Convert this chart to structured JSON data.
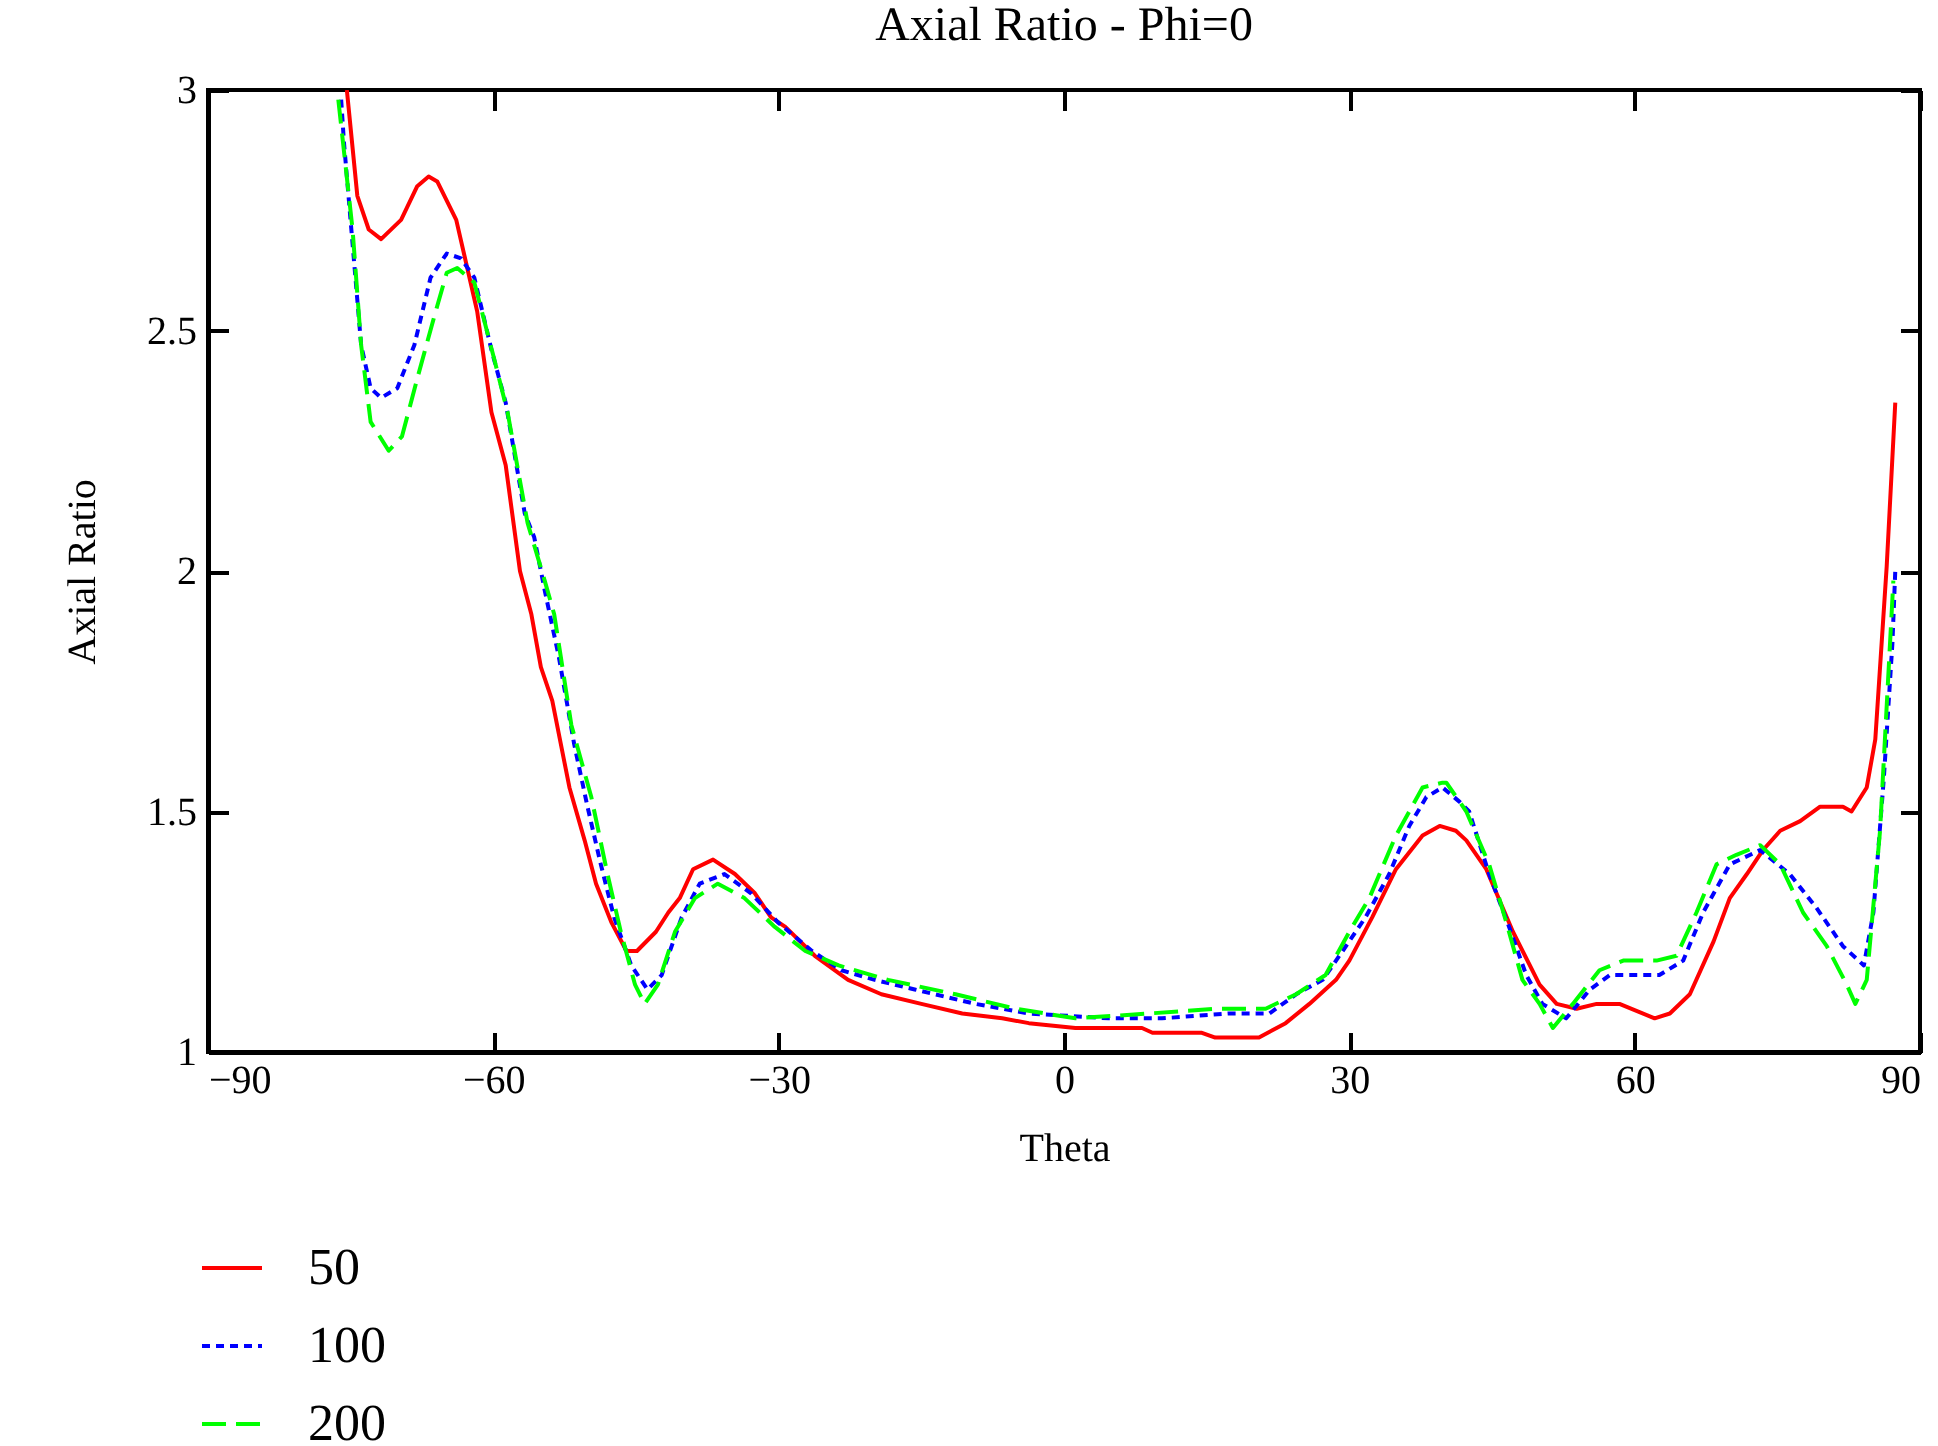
{
  "chart_data": {
    "type": "line",
    "title": "Axial Ratio - Phi=0",
    "xlabel": "Theta",
    "ylabel": "Axial Ratio",
    "xlim": [
      -90,
      90
    ],
    "xticks": [
      -90,
      -60,
      -30,
      0,
      30,
      60,
      90
    ],
    "ylim": [
      1,
      3
    ],
    "yticks": [
      1,
      1.5,
      2,
      2.5,
      3
    ],
    "grid": false,
    "legend": "bottom",
    "marker": "none",
    "series": [
      {
        "name": "50",
        "color": "#ff0000",
        "line_style": "solid",
        "x": [
          -75.4,
          -74.3,
          -73.1,
          -71.8,
          -69.7,
          -68.0,
          -66.8,
          -65.9,
          -63.9,
          -61.7,
          -60.2,
          -58.7,
          -57.2,
          -56.0,
          -55.0,
          -53.8,
          -52.0,
          -50.4,
          -49.2,
          -47.6,
          -46.0,
          -44.9,
          -42.9,
          -41.6,
          -40.4,
          -39.0,
          -36.9,
          -34.6,
          -32.5,
          -30.8,
          -29.3,
          -26.2,
          -22.7,
          -19.2,
          -15.0,
          -10.7,
          -6.5,
          -3.7,
          1.2,
          8.2,
          9.3,
          14.5,
          15.9,
          20.5,
          23.3,
          25.8,
          28.6,
          30.0,
          32.4,
          34.9,
          37.7,
          39.5,
          41.2,
          42.3,
          44.4,
          47.2,
          50.0,
          51.8,
          53.9,
          56.0,
          58.4,
          62.1,
          63.7,
          65.8,
          68.3,
          70.0,
          71.8,
          73.5,
          75.3,
          77.4,
          79.5,
          81.9,
          82.8,
          84.4,
          85.3,
          86.5,
          87.4
        ],
        "values": [
          3.0,
          2.78,
          2.71,
          2.69,
          2.73,
          2.8,
          2.82,
          2.81,
          2.73,
          2.54,
          2.33,
          2.22,
          2.0,
          1.91,
          1.8,
          1.73,
          1.55,
          1.44,
          1.35,
          1.27,
          1.21,
          1.21,
          1.25,
          1.29,
          1.32,
          1.38,
          1.4,
          1.37,
          1.33,
          1.28,
          1.26,
          1.2,
          1.15,
          1.12,
          1.1,
          1.08,
          1.07,
          1.06,
          1.05,
          1.05,
          1.04,
          1.04,
          1.03,
          1.03,
          1.06,
          1.1,
          1.15,
          1.19,
          1.28,
          1.38,
          1.45,
          1.47,
          1.46,
          1.44,
          1.38,
          1.25,
          1.14,
          1.1,
          1.09,
          1.1,
          1.1,
          1.07,
          1.08,
          1.12,
          1.23,
          1.32,
          1.37,
          1.42,
          1.46,
          1.48,
          1.51,
          1.51,
          1.5,
          1.55,
          1.65,
          2.01,
          2.35
        ]
      },
      {
        "name": "100",
        "color": "#0000ff",
        "line_style": "dotted",
        "x": [
          -76.0,
          -75.7,
          -74.8,
          -73.9,
          -72.9,
          -71.8,
          -70.1,
          -68.3,
          -66.6,
          -64.9,
          -63.4,
          -62.0,
          -60.2,
          -58.7,
          -56.7,
          -55.7,
          -54.6,
          -53.1,
          -51.5,
          -50.1,
          -48.7,
          -47.3,
          -45.5,
          -43.8,
          -42.3,
          -40.2,
          -38.3,
          -35.7,
          -32.9,
          -30.1,
          -26.5,
          -23.4,
          -19.9,
          -15.7,
          -9.3,
          -3.7,
          4.7,
          10.3,
          17.3,
          21.6,
          24.4,
          27.2,
          29.3,
          31.7,
          34.2,
          36.3,
          38.1,
          39.8,
          41.6,
          42.6,
          44.7,
          46.8,
          48.6,
          50.3,
          52.8,
          55.3,
          57.4,
          62.6,
          65.1,
          67.2,
          70.0,
          73.2,
          76.3,
          79.1,
          81.9,
          84.1,
          85.1,
          86.2,
          87.1,
          87.4
        ],
        "values": [
          2.98,
          2.89,
          2.68,
          2.47,
          2.38,
          2.36,
          2.38,
          2.47,
          2.61,
          2.66,
          2.65,
          2.61,
          2.46,
          2.35,
          2.12,
          2.07,
          1.96,
          1.82,
          1.64,
          1.51,
          1.39,
          1.28,
          1.18,
          1.13,
          1.16,
          1.28,
          1.35,
          1.37,
          1.33,
          1.27,
          1.21,
          1.17,
          1.15,
          1.13,
          1.1,
          1.08,
          1.07,
          1.07,
          1.08,
          1.08,
          1.12,
          1.15,
          1.21,
          1.28,
          1.37,
          1.47,
          1.53,
          1.55,
          1.52,
          1.5,
          1.37,
          1.26,
          1.16,
          1.1,
          1.07,
          1.13,
          1.16,
          1.16,
          1.19,
          1.29,
          1.39,
          1.42,
          1.37,
          1.3,
          1.22,
          1.18,
          1.29,
          1.57,
          1.85,
          2.0
        ]
      },
      {
        "name": "200",
        "color": "#00ff00",
        "line_style": "dashed",
        "x": [
          -76.3,
          -74.8,
          -73.9,
          -72.9,
          -71.0,
          -69.6,
          -68.0,
          -66.2,
          -64.9,
          -63.8,
          -62.0,
          -59.9,
          -58.5,
          -56.4,
          -54.6,
          -53.6,
          -51.8,
          -49.7,
          -48.0,
          -46.6,
          -45.1,
          -44.1,
          -42.7,
          -40.9,
          -38.8,
          -36.4,
          -33.6,
          -30.4,
          -27.2,
          -23.7,
          -18.5,
          -11.4,
          -5.1,
          1.2,
          8.9,
          15.9,
          21.2,
          24.4,
          27.5,
          30.0,
          32.1,
          34.9,
          37.7,
          39.8,
          40.2,
          42.3,
          44.7,
          46.5,
          48.2,
          50.0,
          51.4,
          53.5,
          56.3,
          58.8,
          62.3,
          64.4,
          66.5,
          68.6,
          70.7,
          73.2,
          75.3,
          77.7,
          80.2,
          82.3,
          83.2,
          84.4,
          85.8,
          87.2
        ],
        "values": [
          2.98,
          2.71,
          2.47,
          2.31,
          2.25,
          2.28,
          2.4,
          2.53,
          2.62,
          2.63,
          2.6,
          2.44,
          2.33,
          2.1,
          1.98,
          1.91,
          1.68,
          1.53,
          1.37,
          1.25,
          1.14,
          1.1,
          1.14,
          1.25,
          1.32,
          1.35,
          1.32,
          1.26,
          1.21,
          1.18,
          1.15,
          1.12,
          1.09,
          1.07,
          1.08,
          1.09,
          1.09,
          1.12,
          1.16,
          1.25,
          1.32,
          1.45,
          1.55,
          1.56,
          1.56,
          1.5,
          1.39,
          1.27,
          1.15,
          1.1,
          1.05,
          1.1,
          1.17,
          1.19,
          1.19,
          1.2,
          1.29,
          1.39,
          1.41,
          1.43,
          1.39,
          1.29,
          1.22,
          1.14,
          1.1,
          1.15,
          1.46,
          1.98
        ]
      }
    ]
  }
}
